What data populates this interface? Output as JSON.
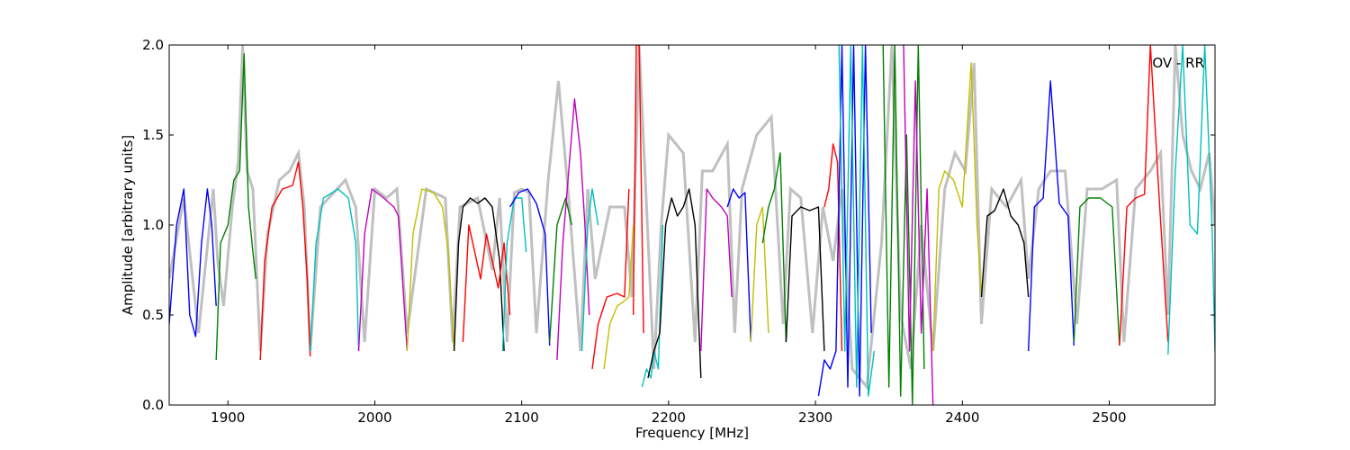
{
  "chart_data": {
    "type": "line",
    "title": "",
    "xlabel": "Frequency [MHz]",
    "ylabel": "Amplitude [arbitrary units]",
    "xlim": [
      1860,
      2572
    ],
    "ylim": [
      0.0,
      2.0
    ],
    "xticks": [
      1900,
      2000,
      2100,
      2200,
      2300,
      2400,
      2500
    ],
    "xtick_labels": [
      "1900",
      "2000",
      "2100",
      "2200",
      "2300",
      "2400",
      "2500"
    ],
    "yticks": [
      0.0,
      0.5,
      1.0,
      1.5,
      2.0
    ],
    "ytick_labels": [
      "0.0",
      "0.5",
      "1.0",
      "1.5",
      "2.0"
    ],
    "grid": false,
    "annotation": "OV - RR",
    "background_color": "#c0c0c0",
    "segment_cycle_colors": [
      "#0000ff",
      "#008000",
      "#ff0000",
      "#00bfbf",
      "#bf00bf",
      "#bfbf00",
      "#000000"
    ],
    "background_series": {
      "name": "",
      "color": "#c0c0c0",
      "x": [
        1860,
        1870,
        1880,
        1890,
        1893,
        1897,
        1903,
        1907,
        1910,
        1913,
        1917,
        1922,
        1927,
        1935,
        1942,
        1948,
        1952,
        1956,
        1963,
        1980,
        1987,
        1993,
        2000,
        2008,
        2015,
        2022,
        2035,
        2048,
        2053,
        2058,
        2070,
        2080,
        2085,
        2090,
        2095,
        2100,
        2105,
        2110,
        2118,
        2125,
        2132,
        2140,
        2145,
        2150,
        2160,
        2170,
        2175,
        2180,
        2190,
        2195,
        2200,
        2210,
        2218,
        2223,
        2230,
        2240,
        2245,
        2250,
        2260,
        2270,
        2278,
        2283,
        2290,
        2298,
        2305,
        2312,
        2318,
        2325,
        2335,
        2345,
        2352,
        2358,
        2365,
        2372,
        2380,
        2388,
        2395,
        2402,
        2408,
        2413,
        2420,
        2430,
        2440,
        2445,
        2452,
        2460,
        2470,
        2478,
        2485,
        2495,
        2505,
        2510,
        2518,
        2528,
        2535,
        2540,
        2545,
        2550,
        2556,
        2562,
        2568,
        2572
      ],
      "y": [
        0.7,
        1.15,
        0.4,
        1.2,
        0.8,
        0.55,
        1.1,
        1.35,
        2.0,
        1.3,
        1.2,
        0.3,
        0.95,
        1.25,
        1.3,
        1.4,
        1.1,
        0.3,
        1.1,
        1.25,
        1.1,
        0.35,
        1.2,
        1.15,
        1.2,
        0.4,
        1.2,
        1.15,
        0.35,
        1.1,
        1.15,
        0.75,
        1.15,
        0.35,
        1.18,
        1.2,
        1.18,
        0.4,
        1.25,
        1.8,
        1.15,
        0.3,
        1.2,
        0.7,
        1.1,
        1.1,
        0.6,
        2.0,
        0.2,
        1.0,
        1.5,
        1.4,
        0.35,
        1.3,
        1.3,
        1.45,
        0.4,
        1.2,
        1.5,
        1.6,
        0.45,
        1.2,
        1.15,
        0.4,
        1.1,
        0.8,
        1.2,
        0.2,
        0.1,
        0.9,
        2.0,
        0.5,
        0.2,
        1.0,
        0.3,
        1.2,
        1.4,
        1.3,
        1.9,
        0.45,
        1.2,
        1.1,
        1.25,
        0.7,
        1.2,
        1.3,
        1.3,
        0.45,
        1.2,
        1.2,
        1.25,
        0.35,
        1.2,
        1.3,
        1.4,
        0.5,
        2.0,
        1.5,
        1.3,
        1.2,
        1.4,
        1.0
      ]
    },
    "series": [
      {
        "color": "#0000ff",
        "x": [
          1860,
          1865,
          1870,
          1874,
          1878,
          1882,
          1886,
          1889,
          1892
        ],
        "y": [
          0.45,
          1.0,
          1.2,
          0.5,
          0.38,
          0.9,
          1.2,
          1.0,
          0.55
        ]
      },
      {
        "color": "#008000",
        "x": [
          1892,
          1895,
          1900,
          1904,
          1908,
          1911,
          1914,
          1917,
          1919
        ],
        "y": [
          0.25,
          0.9,
          1.0,
          1.25,
          1.3,
          1.95,
          1.1,
          0.85,
          0.7
        ]
      },
      {
        "color": "#ff0000",
        "x": [
          1922,
          1925,
          1930,
          1937,
          1944,
          1948,
          1951,
          1954,
          1956
        ],
        "y": [
          0.25,
          0.8,
          1.1,
          1.2,
          1.22,
          1.35,
          1.1,
          0.7,
          0.27
        ]
      },
      {
        "color": "#00bfbf",
        "x": [
          1956,
          1960,
          1965,
          1975,
          1982,
          1987,
          1989
        ],
        "y": [
          0.3,
          0.9,
          1.15,
          1.2,
          1.15,
          0.9,
          0.3
        ]
      },
      {
        "color": "#bf00bf",
        "x": [
          1989,
          1993,
          1998,
          2006,
          2013,
          2016,
          2018,
          2022
        ],
        "y": [
          0.3,
          0.95,
          1.2,
          1.15,
          1.1,
          1.05,
          0.8,
          0.3
        ]
      },
      {
        "color": "#bfbf00",
        "x": [
          2022,
          2026,
          2032,
          2040,
          2046,
          2050,
          2054
        ],
        "y": [
          0.3,
          0.95,
          1.2,
          1.18,
          1.1,
          0.85,
          0.3
        ]
      },
      {
        "color": "#000000",
        "x": [
          2054,
          2057,
          2060,
          2065,
          2070,
          2075,
          2080,
          2085,
          2088
        ],
        "y": [
          0.3,
          0.9,
          1.1,
          1.15,
          1.12,
          1.15,
          1.1,
          0.8,
          0.3
        ]
      },
      {
        "color": "#ff0000",
        "x": [
          2060,
          2064,
          2068,
          2072,
          2076,
          2080,
          2084,
          2088,
          2092
        ],
        "y": [
          0.35,
          1.0,
          0.85,
          0.7,
          0.95,
          0.8,
          0.65,
          0.9,
          0.5
        ]
      },
      {
        "color": "#00bfbf",
        "x": [
          2087,
          2090,
          2095,
          2100,
          2103
        ],
        "y": [
          0.3,
          0.9,
          1.15,
          1.15,
          0.85
        ]
      },
      {
        "color": "#0000ff",
        "x": [
          2092,
          2098,
          2104,
          2110,
          2116,
          2119
        ],
        "y": [
          1.1,
          1.18,
          1.2,
          1.12,
          0.95,
          0.33
        ]
      },
      {
        "color": "#008000",
        "x": [
          2119,
          2124,
          2130,
          2134
        ],
        "y": [
          0.35,
          1.0,
          1.15,
          1.0
        ]
      },
      {
        "color": "#bf00bf",
        "x": [
          2124,
          2128,
          2132,
          2136,
          2140,
          2143,
          2146
        ],
        "y": [
          0.25,
          0.9,
          1.3,
          1.7,
          1.4,
          1.0,
          0.5
        ]
      },
      {
        "color": "#00bfbf",
        "x": [
          2141,
          2145,
          2148,
          2152
        ],
        "y": [
          0.3,
          1.0,
          1.2,
          1.0
        ]
      },
      {
        "color": "#ff0000",
        "x": [
          2148,
          2152,
          2158,
          2165,
          2170,
          2173
        ],
        "y": [
          0.2,
          0.45,
          0.6,
          0.62,
          0.6,
          1.2
        ]
      },
      {
        "color": "#bfbf00",
        "x": [
          2156,
          2160,
          2165,
          2170,
          2173,
          2176
        ],
        "y": [
          0.2,
          0.45,
          0.55,
          0.58,
          0.6,
          1.0
        ]
      },
      {
        "color": "#ff0000",
        "x": [
          2176,
          2178,
          2180,
          2183
        ],
        "y": [
          0.5,
          2.0,
          2.0,
          0.4
        ]
      },
      {
        "color": "#00bfbf",
        "x": [
          2182,
          2185,
          2188,
          2190,
          2193,
          2196
        ],
        "y": [
          0.1,
          0.2,
          0.15,
          0.3,
          0.2,
          1.0
        ]
      },
      {
        "color": "#000000",
        "x": [
          2186,
          2190,
          2194,
          2198,
          2202,
          2206,
          2210,
          2214,
          2218,
          2222
        ],
        "y": [
          0.15,
          0.3,
          0.4,
          1.0,
          1.15,
          1.05,
          1.1,
          1.2,
          1.0,
          0.15
        ]
      },
      {
        "color": "#bf00bf",
        "x": [
          2222,
          2226,
          2230,
          2236,
          2240,
          2243
        ],
        "y": [
          0.3,
          1.2,
          1.15,
          1.1,
          1.05,
          0.6
        ]
      },
      {
        "color": "#0000ff",
        "x": [
          2240,
          2244,
          2248,
          2252,
          2256
        ],
        "y": [
          1.1,
          1.2,
          1.15,
          1.18,
          0.35
        ]
      },
      {
        "color": "#bfbf00",
        "x": [
          2256,
          2260,
          2264,
          2268
        ],
        "y": [
          0.35,
          1.0,
          1.1,
          0.4
        ]
      },
      {
        "color": "#008000",
        "x": [
          2264,
          2268,
          2272,
          2276,
          2280
        ],
        "y": [
          0.9,
          1.1,
          1.2,
          1.4,
          0.35
        ]
      },
      {
        "color": "#000000",
        "x": [
          2280,
          2284,
          2290,
          2296,
          2302,
          2306
        ],
        "y": [
          0.35,
          1.05,
          1.1,
          1.08,
          1.1,
          0.3
        ]
      },
      {
        "color": "#ff0000",
        "x": [
          2306,
          2309,
          2312,
          2315,
          2318
        ],
        "y": [
          1.1,
          1.2,
          1.45,
          1.35,
          0.3
        ]
      },
      {
        "color": "#0000ff",
        "x": [
          2302,
          2306,
          2310,
          2314,
          2318,
          2322,
          2326,
          2330,
          2334,
          2338
        ],
        "y": [
          0.05,
          0.25,
          0.2,
          0.3,
          2.0,
          0.1,
          2.0,
          0.05,
          2.0,
          0.4
        ]
      },
      {
        "color": "#00bfbf",
        "x": [
          2316,
          2320,
          2324,
          2328,
          2332,
          2336,
          2340
        ],
        "y": [
          2.0,
          0.3,
          2.0,
          0.1,
          2.0,
          0.05,
          0.3
        ]
      },
      {
        "color": "#008000",
        "x": [
          2346,
          2350,
          2354,
          2358,
          2362,
          2366,
          2370,
          2374
        ],
        "y": [
          2.0,
          0.1,
          2.0,
          0.05,
          1.5,
          0.0,
          2.0,
          0.2
        ]
      },
      {
        "color": "#bf00bf",
        "x": [
          2360,
          2364,
          2368,
          2372,
          2376,
          2380
        ],
        "y": [
          2.0,
          0.3,
          1.8,
          0.4,
          1.2,
          0.0
        ]
      },
      {
        "color": "#bfbf00",
        "x": [
          2380,
          2384,
          2388,
          2394,
          2400,
          2406,
          2410,
          2413
        ],
        "y": [
          0.3,
          1.2,
          1.3,
          1.25,
          1.1,
          1.9,
          1.0,
          0.6
        ]
      },
      {
        "color": "#000000",
        "x": [
          2413,
          2417,
          2422,
          2428,
          2433,
          2438,
          2442,
          2445
        ],
        "y": [
          0.6,
          1.05,
          1.08,
          1.2,
          1.05,
          1.0,
          0.9,
          0.6
        ]
      },
      {
        "color": "#0000ff",
        "x": [
          2445,
          2449,
          2455,
          2460,
          2466,
          2472,
          2476
        ],
        "y": [
          0.3,
          1.1,
          1.15,
          1.8,
          1.12,
          1.05,
          0.33
        ]
      },
      {
        "color": "#008000",
        "x": [
          2476,
          2480,
          2486,
          2494,
          2502,
          2507
        ],
        "y": [
          0.35,
          1.1,
          1.15,
          1.15,
          1.1,
          0.33
        ]
      },
      {
        "color": "#ff0000",
        "x": [
          2507,
          2512,
          2518,
          2524,
          2528,
          2534,
          2540
        ],
        "y": [
          0.33,
          1.1,
          1.15,
          1.17,
          2.0,
          1.15,
          0.35
        ]
      },
      {
        "color": "#00bfbf",
        "x": [
          2540,
          2545,
          2550,
          2555,
          2560,
          2565,
          2570,
          2572
        ],
        "y": [
          0.28,
          1.3,
          2.0,
          1.0,
          0.95,
          2.0,
          1.0,
          0.3
        ]
      }
    ]
  }
}
